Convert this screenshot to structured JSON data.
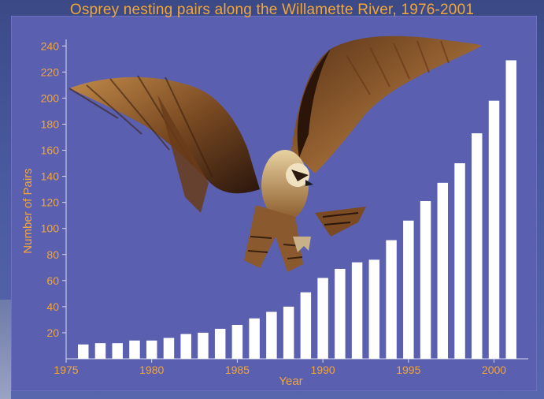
{
  "chart_data": {
    "type": "bar",
    "title": "Osprey nesting pairs along the Willamette River, 1976-2001",
    "xlabel": "Year",
    "ylabel": "Number of Pairs",
    "x": [
      1976,
      1977,
      1978,
      1979,
      1980,
      1981,
      1982,
      1983,
      1984,
      1985,
      1986,
      1987,
      1988,
      1989,
      1990,
      1991,
      1992,
      1993,
      1994,
      1995,
      1996,
      1997,
      1998,
      1999,
      2000,
      2001
    ],
    "values": [
      11,
      12,
      12,
      14,
      14,
      16,
      19,
      20,
      23,
      26,
      31,
      36,
      40,
      51,
      62,
      69,
      74,
      76,
      91,
      106,
      121,
      135,
      150,
      173,
      198,
      229
    ],
    "xlim": [
      1975,
      2002
    ],
    "ylim": [
      0,
      245
    ],
    "xticks": [
      "1975",
      "1980",
      "1985",
      "1990",
      "1995",
      "2000"
    ],
    "yticks": [
      "20",
      "40",
      "60",
      "80",
      "100",
      "120",
      "140",
      "160",
      "180",
      "200",
      "220",
      "240"
    ],
    "grid": false,
    "colors": {
      "bar": "#ffffff",
      "text": "#f2a63a",
      "plot_bg": "#5a5fb0",
      "axis": "#d8dbf0"
    },
    "image": "osprey-photo"
  }
}
